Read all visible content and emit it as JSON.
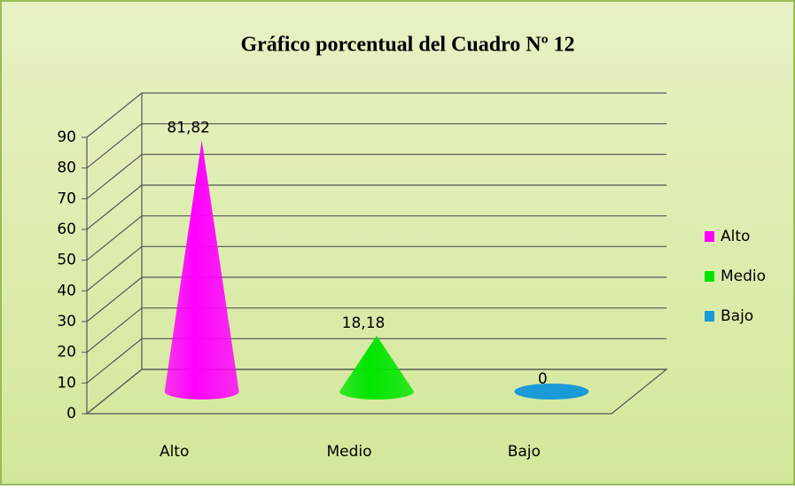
{
  "chart_data": {
    "type": "cone3d",
    "title": "Gráfico porcentual del Cuadro Nº 12",
    "categories": [
      "Alto",
      "Medio",
      "Bajo"
    ],
    "values": [
      81.82,
      18.18,
      0
    ],
    "value_labels": [
      "81,82",
      "18,18",
      "0"
    ],
    "colors": [
      "#ff00ff",
      "#00e600",
      "#1a9ad6"
    ],
    "ylim": [
      0,
      90
    ],
    "yticks": [
      0,
      10,
      20,
      30,
      40,
      50,
      60,
      70,
      80,
      90
    ],
    "grid": true,
    "legend": "right"
  }
}
